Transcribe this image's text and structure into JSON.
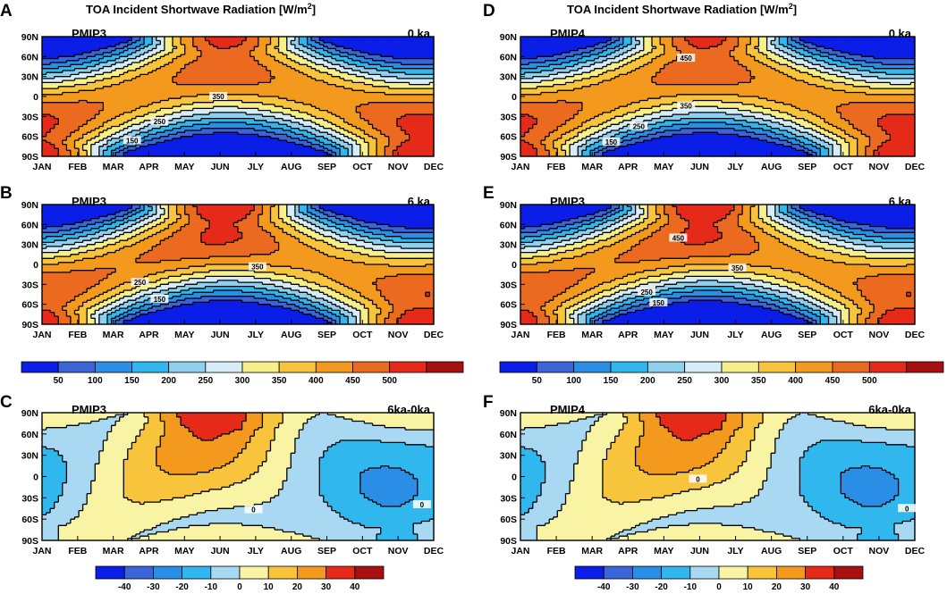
{
  "chart_data": [
    {
      "type": "heatmap",
      "id": "A",
      "panel_letter": "A",
      "title": "TOA Incident Shortwave Radiation [W/m",
      "title_sup": "2",
      "title_end": "]",
      "model": "PMIP3",
      "age": "0 ka",
      "field": "insolation",
      "epoch": 0,
      "x_categories": [
        "JAN",
        "FEB",
        "MAR",
        "APR",
        "MAY",
        "JUN",
        "JLY",
        "AUG",
        "SEP",
        "OCT",
        "NOV",
        "DEC"
      ],
      "y_labels": [
        "90N",
        "60N",
        "30N",
        "0",
        "30S",
        "60S",
        "90S"
      ],
      "contour_labels": [
        "350",
        "250",
        "150"
      ]
    },
    {
      "type": "heatmap",
      "id": "B",
      "panel_letter": "B",
      "model": "PMIP3",
      "age": "6 ka",
      "field": "insolation",
      "epoch": 6,
      "x_categories": [
        "JAN",
        "FEB",
        "MAR",
        "APR",
        "MAY",
        "JUN",
        "JLY",
        "AUG",
        "SEP",
        "OCT",
        "NOV",
        "DEC"
      ],
      "y_labels": [
        "90N",
        "60N",
        "30N",
        "0",
        "30S",
        "60S",
        "90S"
      ],
      "contour_labels": [
        "350",
        "250",
        "150"
      ]
    },
    {
      "type": "heatmap",
      "id": "C",
      "panel_letter": "C",
      "model": "PMIP3",
      "age": "6ka-0ka",
      "field": "difference",
      "x_categories": [
        "JAN",
        "FEB",
        "MAR",
        "APR",
        "MAY",
        "JUN",
        "JLY",
        "AUG",
        "SEP",
        "OCT",
        "NOV",
        "DEC"
      ],
      "y_labels": [
        "90N",
        "60N",
        "30N",
        "0",
        "30S",
        "60S",
        "90S"
      ],
      "contour_labels": [
        "0",
        "0"
      ]
    },
    {
      "type": "heatmap",
      "id": "D",
      "panel_letter": "D",
      "title": "TOA Incident Shortwave Radiation [W/m",
      "title_sup": "2",
      "title_end": "]",
      "model": "PMIP4",
      "age": "0 ka",
      "field": "insolation",
      "epoch": 0,
      "x_categories": [
        "JAN",
        "FEB",
        "MAR",
        "APR",
        "MAY",
        "JUN",
        "JLY",
        "AUG",
        "SEP",
        "OCT",
        "NOV",
        "DEC"
      ],
      "y_labels": [
        "90N",
        "60N",
        "30N",
        "0",
        "30S",
        "60S",
        "90S"
      ],
      "contour_labels": [
        "450",
        "350",
        "250",
        "150"
      ]
    },
    {
      "type": "heatmap",
      "id": "E",
      "panel_letter": "E",
      "model": "PMIP3",
      "age": "6 ka",
      "field": "insolation",
      "epoch": 6,
      "x_categories": [
        "JAN",
        "FEB",
        "MAR",
        "APR",
        "MAY",
        "JUN",
        "JLY",
        "AUG",
        "SEP",
        "OCT",
        "NOV",
        "DEC"
      ],
      "y_labels": [
        "90N",
        "60N",
        "30N",
        "0",
        "30S",
        "60S",
        "90S"
      ],
      "contour_labels": [
        "450",
        "350",
        "250",
        "150"
      ]
    },
    {
      "type": "heatmap",
      "id": "F",
      "panel_letter": "F",
      "model": "PMIP4",
      "age": "6ka-0ka",
      "field": "difference",
      "x_categories": [
        "JAN",
        "FEB",
        "MAR",
        "APR",
        "MAY",
        "JUN",
        "JLY",
        "AUG",
        "SEP",
        "OCT",
        "NOV",
        "DEC"
      ],
      "y_labels": [
        "90N",
        "60N",
        "30N",
        "0",
        "30S",
        "60S",
        "90S"
      ],
      "contour_labels": [
        "0",
        "0"
      ]
    }
  ],
  "colorbars": {
    "insolation": {
      "labels": [
        "50",
        "100",
        "150",
        "200",
        "250",
        "300",
        "350",
        "400",
        "450",
        "500"
      ],
      "levels": [
        50,
        100,
        150,
        200,
        250,
        300,
        350,
        400,
        450,
        500
      ],
      "colors": [
        "#0b1ee8",
        "#3a64d8",
        "#2b8ee6",
        "#30b8ee",
        "#8fd0ee",
        "#d6ecf6",
        "#f7ef8a",
        "#f8c43c",
        "#f39a1e",
        "#ec6a20",
        "#e62a1a",
        "#a80f0f"
      ]
    },
    "difference": {
      "labels": [
        "-40",
        "-30",
        "-20",
        "-10",
        "0",
        "10",
        "20",
        "30",
        "40"
      ],
      "levels": [
        -40,
        -30,
        -20,
        -10,
        0,
        10,
        20,
        30,
        40
      ],
      "colors": [
        "#0b1ee8",
        "#3a64d8",
        "#2b8ee6",
        "#30b8ee",
        "#a9d8f2",
        "#f9f3a4",
        "#f8c43c",
        "#f39a1e",
        "#e62a1a",
        "#a80f0f"
      ]
    }
  }
}
